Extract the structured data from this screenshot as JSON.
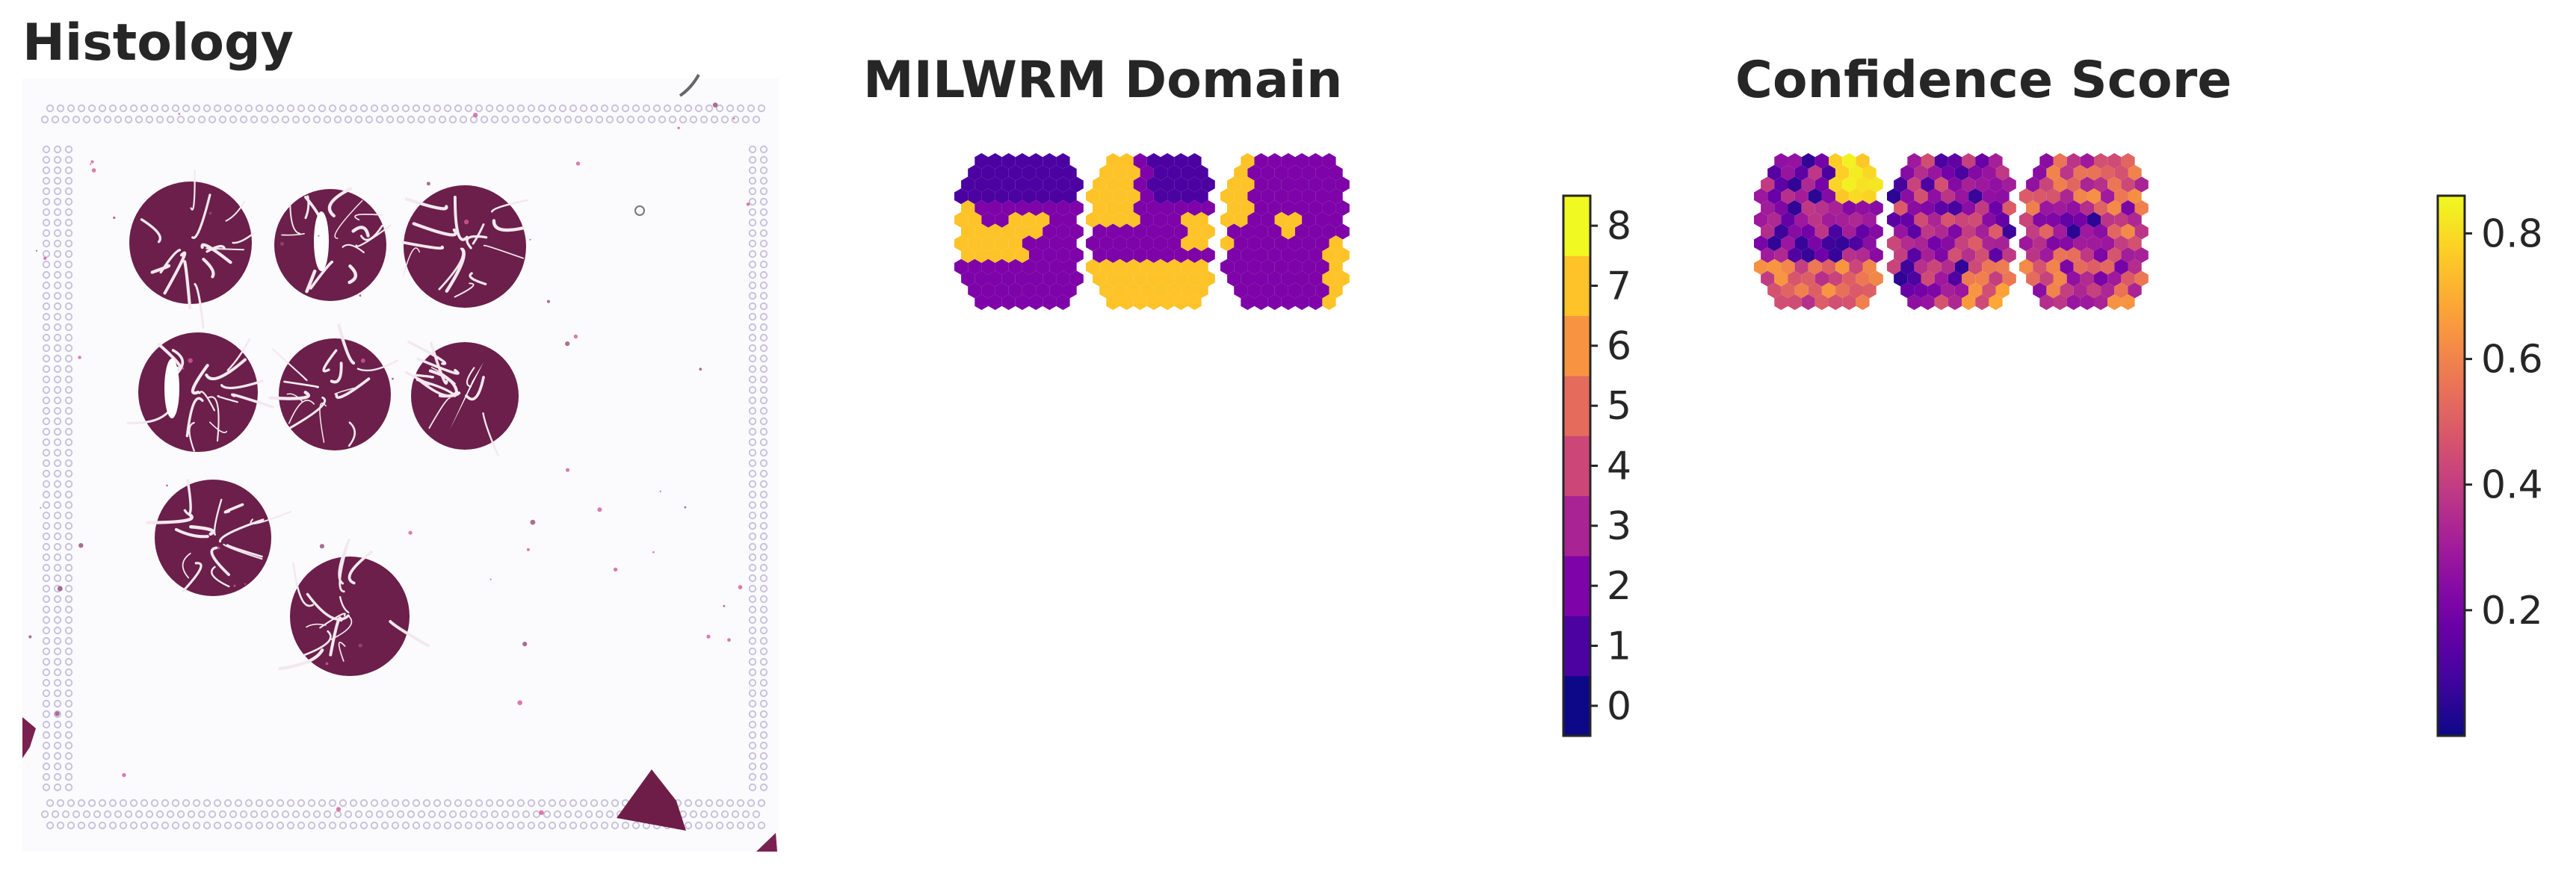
{
  "chart_data": [
    {
      "type": "image",
      "title": "Histology",
      "description_elements": {
        "tissue_cores": 8,
        "fragments": 3
      }
    },
    {
      "type": "heatmap",
      "title": "MILWRM Domain",
      "colorbar": {
        "colormap": "plasma",
        "discrete": true,
        "ticks": [
          "0",
          "1",
          "2",
          "3",
          "4",
          "5",
          "6",
          "7",
          "8"
        ],
        "range": [
          -0.5,
          8.5
        ]
      },
      "samples": 3
    },
    {
      "type": "heatmap",
      "title": "Confidence Score",
      "colorbar": {
        "colormap": "plasma",
        "discrete": false,
        "ticks": [
          "0.2",
          "0.4",
          "0.6",
          "0.8"
        ],
        "tick_values": [
          0.2,
          0.4,
          0.6,
          0.8
        ],
        "range": [
          0.0,
          0.86
        ]
      },
      "samples": 3
    }
  ],
  "colors": {
    "domain_palette": [
      "#0d0887",
      "#4c02a1",
      "#7e03a8",
      "#a92395",
      "#cc4778",
      "#e56b5d",
      "#f89441",
      "#fdc328",
      "#f0f921"
    ],
    "tissue": "#6b1f4a",
    "fiducial": "#c9c2dc"
  }
}
